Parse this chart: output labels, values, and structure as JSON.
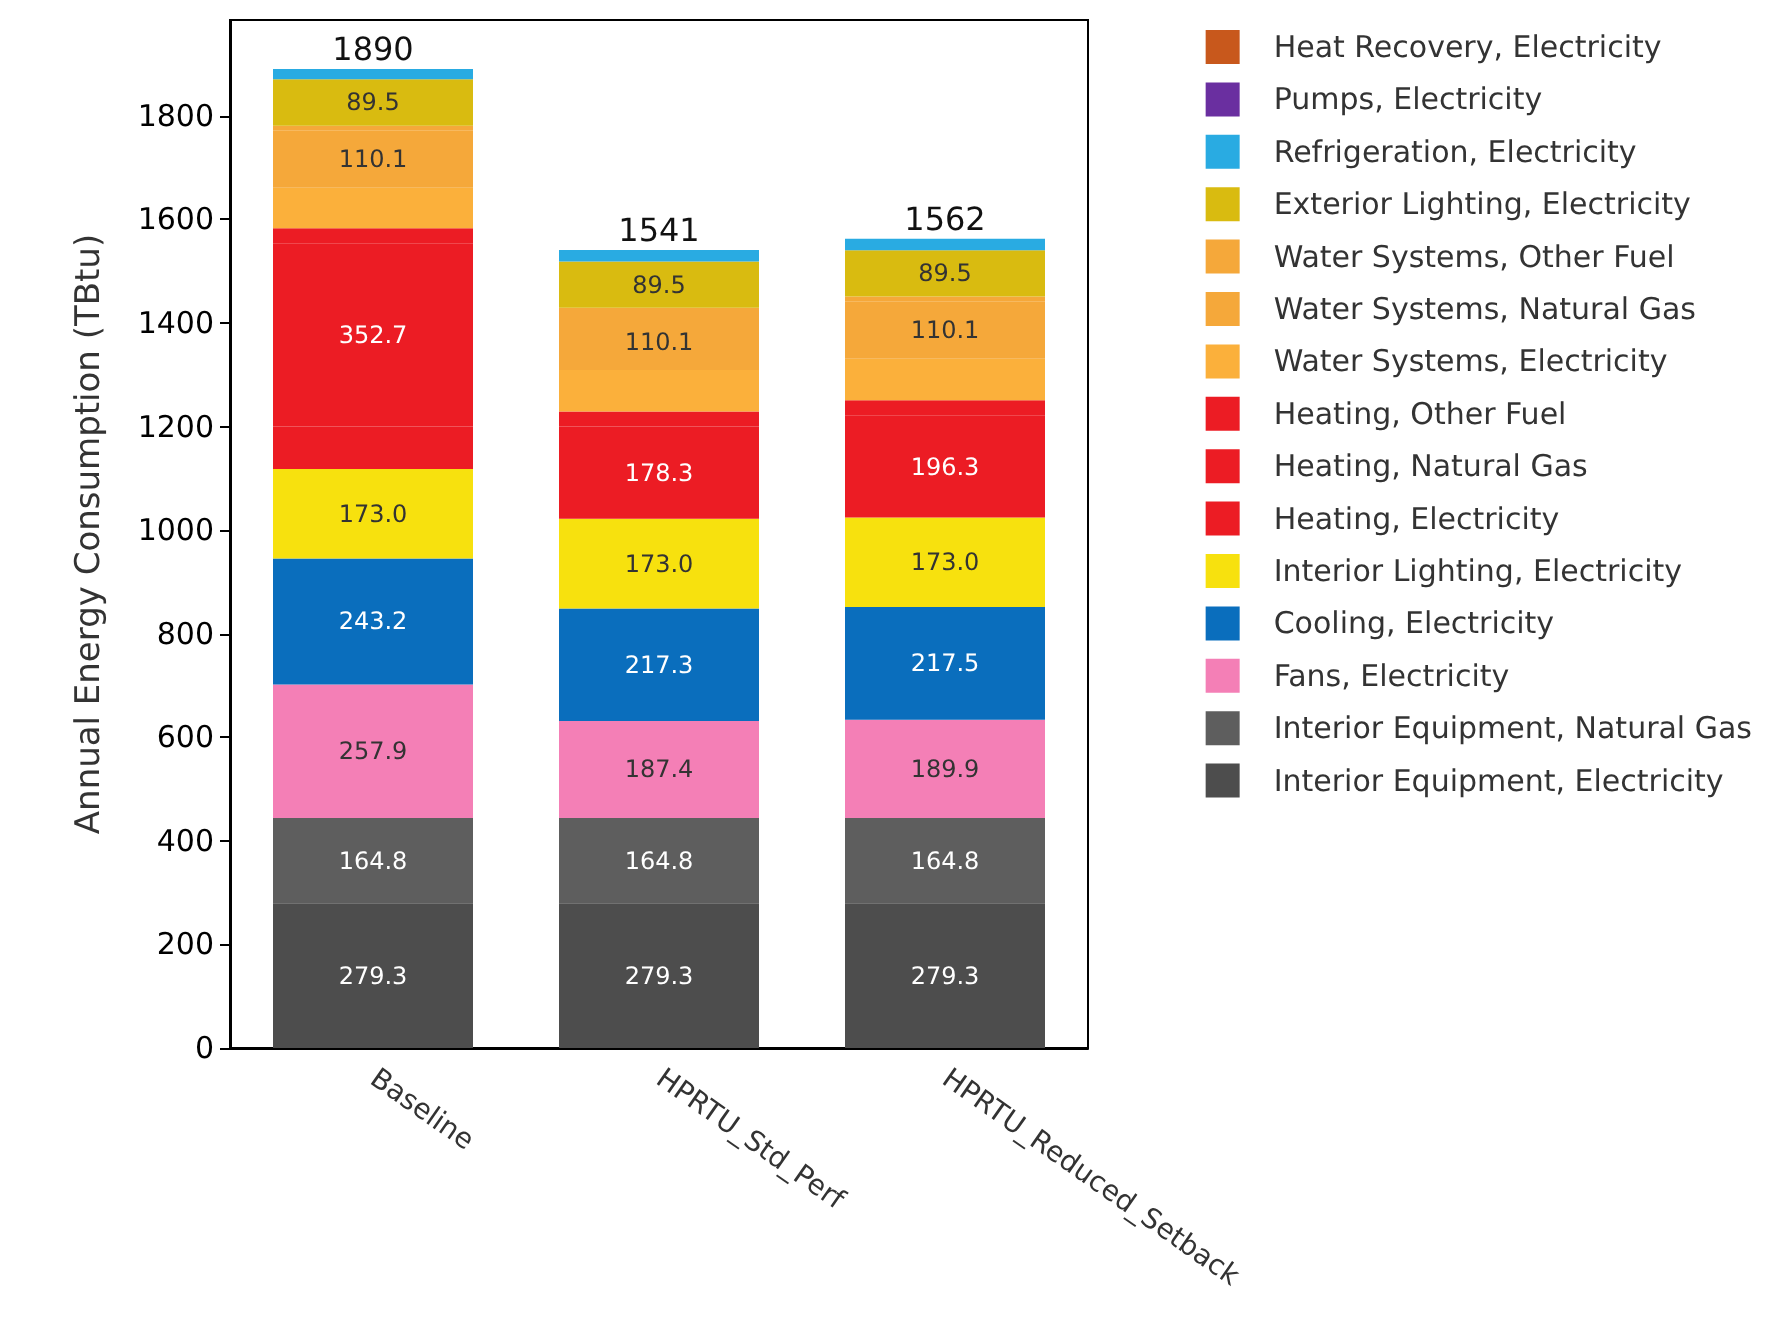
{
  "chart_data": {
    "type": "bar",
    "stacked": true,
    "ylabel": "Annual Energy Consumption (TBtu)",
    "categories": [
      "Baseline",
      "HPRTU_Std_Perf",
      "HPRTU_Reduced_Setback"
    ],
    "ylim": [
      0,
      1985
    ],
    "yticks": [
      0,
      200,
      400,
      600,
      800,
      {
        "value": 1000,
        "label": "1000"
      },
      {
        "value": 1200,
        "label": "1200"
      },
      {
        "value": 1400,
        "label": "1400"
      },
      {
        "value": 1600,
        "label": "1600"
      },
      {
        "value": 1800,
        "label": "1800"
      }
    ],
    "grid": false,
    "legend": "right",
    "totals": [
      "1890",
      "1541",
      "1562"
    ],
    "series": [
      {
        "name": "Interior Equipment, Electricity",
        "color": "#4d4d4d",
        "values": [
          279.3,
          279.3,
          279.3
        ],
        "value_labels": [
          "279.3",
          "279.3",
          "279.3"
        ]
      },
      {
        "name": "Interior Equipment, Natural Gas",
        "color": "#5e5e5e",
        "values": [
          164.8,
          164.8,
          164.8
        ],
        "value_labels": [
          "164.8",
          "164.8",
          "164.8"
        ]
      },
      {
        "name": "Fans, Electricity",
        "color": "#f47fb6",
        "values": [
          257.9,
          187.4,
          189.9
        ],
        "value_labels": [
          "257.9",
          "187.4",
          "189.9"
        ]
      },
      {
        "name": "Cooling, Electricity",
        "color": "#0a6ebd",
        "values": [
          243.2,
          217.3,
          217.5
        ],
        "value_labels": [
          "243.2",
          "217.3",
          "217.5"
        ]
      },
      {
        "name": "Interior Lighting, Electricity",
        "color": "#f7e10e",
        "values": [
          173.0,
          173.0,
          173.0
        ],
        "value_labels": [
          "173.0",
          "173.0",
          "173.0"
        ]
      },
      {
        "name": "Heating, Electricity",
        "color": "#ec1c24",
        "values": [
          82,
          178.3,
          196.3
        ],
        "value_labels": [
          null,
          "178.3",
          "196.3"
        ]
      },
      {
        "name": "Heating, Natural Gas",
        "color": "#ec1c24",
        "values": [
          352.7,
          29,
          30
        ],
        "value_labels": [
          "352.7",
          null,
          null
        ]
      },
      {
        "name": "Heating, Other Fuel",
        "color": "#ec1c24",
        "values": [
          30,
          null,
          null
        ],
        "value_labels": [
          null,
          null,
          null
        ]
      },
      {
        "name": "Water Systems, Electricity",
        "color": "#fbb03b",
        "values": [
          78,
          80,
          80
        ],
        "value_labels": [
          null,
          null,
          null
        ]
      },
      {
        "name": "Water Systems, Natural Gas",
        "color": "#f5a83a",
        "values": [
          110.1,
          110.1,
          110.1
        ],
        "value_labels": [
          "110.1",
          "110.1",
          "110.1"
        ]
      },
      {
        "name": "Water Systems, Other Fuel",
        "color": "#f5a83a",
        "values": [
          10,
          10,
          10
        ],
        "value_labels": [
          null,
          null,
          null
        ]
      },
      {
        "name": "Exterior Lighting, Electricity",
        "color": "#d9bb10",
        "values": [
          89.5,
          89.5,
          89.5
        ],
        "value_labels": [
          "89.5",
          "89.5",
          "89.5"
        ]
      },
      {
        "name": "Refrigeration, Electricity",
        "color": "#29abe2",
        "values": [
          20,
          22,
          22
        ],
        "value_labels": [
          null,
          null,
          null
        ]
      },
      {
        "name": "Pumps, Electricity",
        "color": "#6a2fa0",
        "values": [
          null,
          null,
          null
        ],
        "value_labels": [
          null,
          null,
          null
        ]
      },
      {
        "name": "Heat Recovery, Electricity",
        "color": "#c8581c",
        "values": [
          null,
          null,
          null
        ],
        "value_labels": [
          null,
          null,
          null
        ]
      }
    ]
  }
}
